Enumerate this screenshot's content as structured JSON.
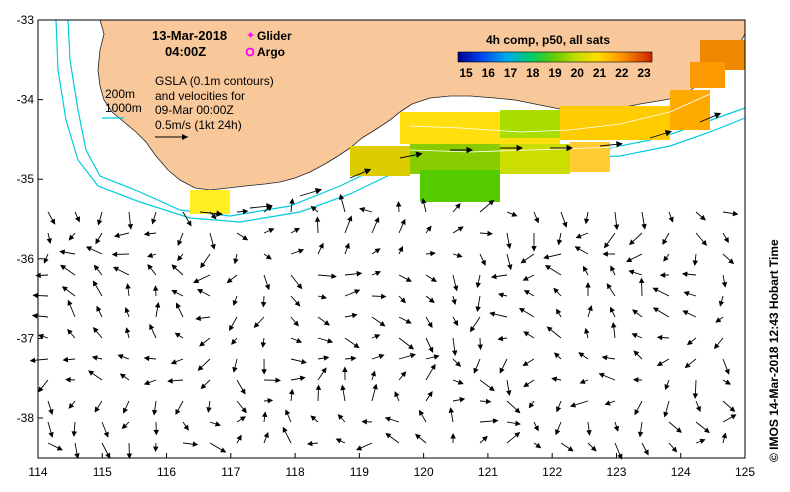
{
  "map": {
    "date": "13-Mar-2018",
    "time": "04:00Z",
    "legend": {
      "glider_label": "Glider",
      "argo_label": "Argo",
      "glider_color": "#ff00ff",
      "argo_color": "#ff00ff"
    },
    "contour_labels": [
      "200m",
      "1000m"
    ],
    "gsla_text": [
      "GSLA (0.1m contours)",
      "and velocities for",
      "09-Mar 00:00Z",
      "0.5m/s (1kt 24h)"
    ],
    "colorbar": {
      "title": "4h comp, p50, all sats",
      "ticks": [
        "15",
        "16",
        "17",
        "18",
        "19",
        "20",
        "21",
        "22",
        "23"
      ],
      "colors": [
        "#00008b",
        "#0033cc",
        "#0077ff",
        "#00bbdd",
        "#00cc66",
        "#55cc00",
        "#aadd00",
        "#ffee00",
        "#ffbb00",
        "#ff8800",
        "#ee5500",
        "#cc2200"
      ]
    },
    "credit": "© IMOS 14-Mar-2018 12:43 Hobart Time",
    "x_axis": {
      "ticks": [
        "114",
        "115",
        "116",
        "117",
        "118",
        "119",
        "120",
        "121",
        "122",
        "123",
        "124",
        "125"
      ],
      "range": [
        114,
        125
      ]
    },
    "y_axis": {
      "ticks": [
        "-33",
        "-34",
        "-35",
        "-36",
        "-37",
        "-38"
      ],
      "range": [
        -38.5,
        -33
      ]
    },
    "colors": {
      "land": "#f8c89a",
      "isobath": "#00ccdd",
      "contour": "#ffffff",
      "vector": "#000000"
    }
  }
}
